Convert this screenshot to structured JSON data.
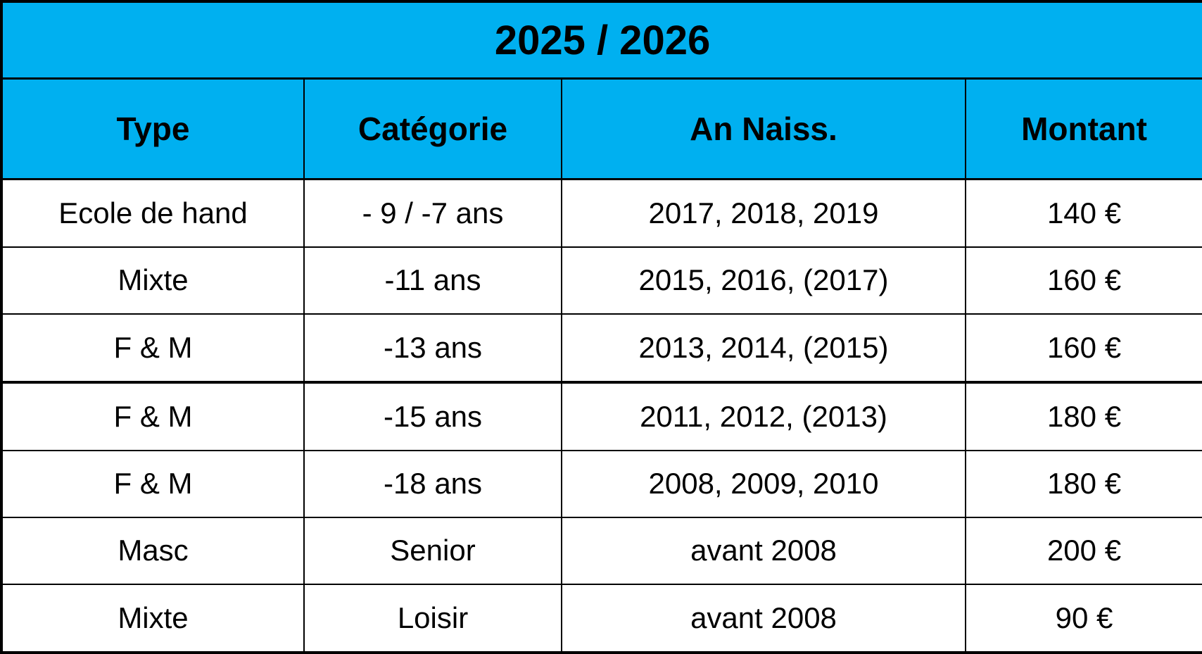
{
  "table": {
    "title": "2025 / 2026",
    "columns": [
      "Type",
      "Catégorie",
      "An Naiss.",
      "Montant"
    ],
    "rows": [
      {
        "type": "Ecole de hand",
        "categorie": "- 9 / -7 ans",
        "an_naiss": "2017, 2018, 2019",
        "montant": "140 €"
      },
      {
        "type": "Mixte",
        "categorie": "-11 ans",
        "an_naiss": "2015, 2016, (2017)",
        "montant": "160 €"
      },
      {
        "type": "F & M",
        "categorie": "-13 ans",
        "an_naiss": "2013, 2014, (2015)",
        "montant": "160 €"
      },
      {
        "type": "F & M",
        "categorie": "-15 ans",
        "an_naiss": "2011, 2012, (2013)",
        "montant": "180 €"
      },
      {
        "type": "F & M",
        "categorie": "-18 ans",
        "an_naiss": "2008, 2009, 2010",
        "montant": "180 €"
      },
      {
        "type": "Masc",
        "categorie": "Senior",
        "an_naiss": "avant 2008",
        "montant": "200 €"
      },
      {
        "type": "Mixte",
        "categorie": "Loisir",
        "an_naiss": "avant 2008",
        "montant": "90 €"
      }
    ],
    "thick_divider_before_row_index": 3,
    "colors": {
      "header_bg": "#00b0f0",
      "border": "#000000",
      "row_bg": "#ffffff",
      "text": "#000000"
    }
  }
}
